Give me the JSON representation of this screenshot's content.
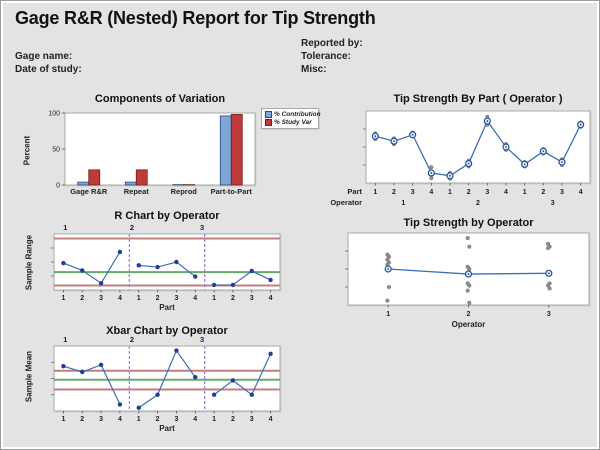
{
  "header": {
    "title": "Gage R&R (Nested) Report for Tip Strength",
    "gage_name_label": "Gage name:",
    "date_label": "Date of study:",
    "reported_label": "Reported by:",
    "tolerance_label": "Tolerance:",
    "misc_label": "Misc:"
  },
  "colors": {
    "background": "#e3e3e3",
    "plot_bg": "#ffffff",
    "plot_border": "#a9a9a9",
    "bar_blue_fill": "#7fa8d9",
    "bar_blue_stroke": "#27477f",
    "bar_red_fill": "#bf3a39",
    "bar_red_stroke": "#6f1d1d",
    "line_blue": "#3d6fb5",
    "marker_navy": "#1f3d99",
    "marker_open_stroke": "#1d4f9e",
    "gray_point": "#8f8f8f",
    "center_line_green": "#6aa86a",
    "control_line_red": "#c17f7f",
    "separator_purple": "#9b7fd4",
    "tick_text": "#222222"
  },
  "chart_data": [
    {
      "id": "components_of_variation",
      "type": "bar",
      "title": "Components of Variation",
      "ylabel": "Percent",
      "ylim": [
        0,
        100
      ],
      "yticks": [
        0,
        50,
        100
      ],
      "categories": [
        "Gage R&R",
        "Repeat",
        "Reprod",
        "Part-to-Part"
      ],
      "series": [
        {
          "name": "% Contribution",
          "values": [
            4,
            4,
            0.5,
            96
          ]
        },
        {
          "name": "% Study Var",
          "values": [
            21,
            21,
            0.5,
            98
          ]
        }
      ],
      "legend_position": "right",
      "grid": false
    },
    {
      "id": "tip_strength_by_part",
      "type": "line",
      "title": "Tip Strength By Part ( Operator )",
      "x_rows": [
        {
          "label": "Part",
          "ticks": [
            "1",
            "2",
            "3",
            "4",
            "1",
            "2",
            "3",
            "4",
            "1",
            "2",
            "3",
            "4"
          ]
        },
        {
          "label": "Operator",
          "ticks": [
            "1",
            "2",
            "3"
          ]
        }
      ],
      "ylim": [
        0,
        1
      ],
      "y_units": "relative-unlabeled",
      "mean_values": [
        0.65,
        0.58,
        0.67,
        0.14,
        0.1,
        0.27,
        0.86,
        0.5,
        0.26,
        0.44,
        0.29,
        0.81
      ],
      "replicates": [
        [
          0.69,
          0.61
        ],
        [
          0.62,
          0.54
        ],
        [
          0.7,
          0.65
        ],
        [
          0.22,
          0.07
        ],
        [
          0.14,
          0.06
        ],
        [
          0.31,
          0.23
        ],
        [
          0.92,
          0.81
        ],
        [
          0.54,
          0.46
        ],
        [
          0.29,
          0.23
        ],
        [
          0.47,
          0.41
        ],
        [
          0.33,
          0.25
        ],
        [
          0.84,
          0.78
        ]
      ]
    },
    {
      "id": "r_chart",
      "type": "line",
      "title": "R Chart by Operator",
      "ylabel": "Sample Range",
      "xlabel": "Part",
      "group_labels": [
        "1",
        "2",
        "3"
      ],
      "x_ticks": [
        "1",
        "2",
        "3",
        "4",
        "1",
        "2",
        "3",
        "4",
        "1",
        "2",
        "3",
        "4"
      ],
      "ylim": [
        0,
        1
      ],
      "y_units": "relative-unlabeled",
      "values": [
        0.48,
        0.35,
        0.12,
        0.68,
        0.44,
        0.41,
        0.5,
        0.24,
        0.09,
        0.09,
        0.34,
        0.18
      ],
      "ucl": 0.92,
      "center": 0.32,
      "lcl": 0.08
    },
    {
      "id": "tip_strength_by_operator",
      "type": "scatter",
      "title": "Tip Strength by Operator",
      "xlabel": "Operator",
      "x_ticks": [
        "1",
        "2",
        "3"
      ],
      "ylim": [
        0,
        1
      ],
      "y_units": "relative-unlabeled",
      "mean_values": [
        0.5,
        0.43,
        0.44
      ],
      "scatter": [
        [
          0.7,
          0.67,
          0.63,
          0.59,
          0.56,
          0.25,
          0.06
        ],
        [
          0.93,
          0.81,
          0.53,
          0.5,
          0.3,
          0.27,
          0.2,
          0.03
        ],
        [
          0.85,
          0.81,
          0.79,
          0.3,
          0.27,
          0.23
        ]
      ]
    },
    {
      "id": "xbar_chart",
      "type": "line",
      "title": "Xbar Chart by Operator",
      "ylabel": "Sample Mean",
      "xlabel": "Part",
      "group_labels": [
        "1",
        "2",
        "3"
      ],
      "x_ticks": [
        "1",
        "2",
        "3",
        "4",
        "1",
        "2",
        "3",
        "4",
        "1",
        "2",
        "3",
        "4"
      ],
      "ylim": [
        0,
        1
      ],
      "y_units": "relative-unlabeled",
      "values": [
        0.69,
        0.6,
        0.71,
        0.1,
        0.05,
        0.25,
        0.93,
        0.52,
        0.25,
        0.47,
        0.25,
        0.88
      ],
      "ucl": 0.62,
      "center": 0.48,
      "lcl": 0.33
    }
  ]
}
